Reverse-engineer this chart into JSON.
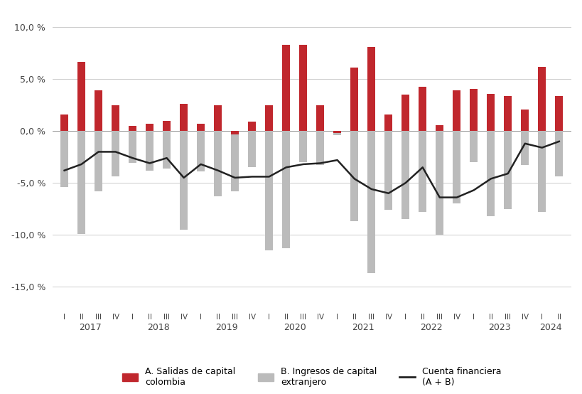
{
  "quarters": [
    "I",
    "II",
    "III",
    "IV",
    "I",
    "II",
    "III",
    "IV",
    "I",
    "II",
    "III",
    "IV",
    "I",
    "II",
    "III",
    "IV",
    "I",
    "II",
    "III",
    "IV",
    "I",
    "II",
    "III",
    "IV",
    "I",
    "II",
    "III",
    "IV",
    "I",
    "II"
  ],
  "years": [
    2017,
    2017,
    2017,
    2017,
    2018,
    2018,
    2018,
    2018,
    2019,
    2019,
    2019,
    2019,
    2020,
    2020,
    2020,
    2020,
    2021,
    2021,
    2021,
    2021,
    2022,
    2022,
    2022,
    2022,
    2023,
    2023,
    2023,
    2023,
    2024,
    2024
  ],
  "year_labels": [
    2017,
    2018,
    2019,
    2020,
    2021,
    2022,
    2023,
    2024
  ],
  "salidas": [
    1.6,
    6.7,
    3.9,
    2.5,
    0.5,
    0.7,
    1.0,
    2.6,
    0.7,
    2.5,
    -0.3,
    0.9,
    2.5,
    8.3,
    8.3,
    2.5,
    -0.2,
    6.1,
    8.1,
    1.6,
    3.5,
    4.3,
    0.6,
    3.9,
    4.1,
    3.6,
    3.4,
    2.1,
    6.2,
    3.4
  ],
  "ingresos": [
    -5.4,
    -9.9,
    -5.8,
    -4.4,
    -3.1,
    -3.8,
    -3.6,
    -9.5,
    -3.9,
    -6.3,
    -5.8,
    -3.5,
    -11.5,
    -11.3,
    -3.0,
    -3.3,
    -0.4,
    -8.7,
    -13.7,
    -7.6,
    -8.5,
    -7.8,
    -10.0,
    -7.0,
    -3.0,
    -8.2,
    -7.5,
    -3.3,
    -7.8,
    -4.4
  ],
  "cuenta": [
    -3.8,
    -3.2,
    -2.0,
    -2.0,
    -2.6,
    -3.1,
    -2.6,
    -4.5,
    -3.2,
    -3.8,
    -4.5,
    -4.4,
    -4.4,
    -3.5,
    -3.2,
    -3.1,
    -2.8,
    -4.6,
    -5.6,
    -6.0,
    -5.0,
    -3.5,
    -6.4,
    -6.4,
    -5.7,
    -4.6,
    -4.1,
    -1.2,
    -1.6,
    -1.0
  ],
  "bar_color_salidas": "#C0272D",
  "bar_color_ingresos": "#BBBBBB",
  "line_color": "#222222",
  "bg_color": "#FFFFFF",
  "grid_color": "#CCCCCC",
  "ylim": [
    -17.0,
    11.5
  ],
  "yticks": [
    -15.0,
    -10.0,
    -5.0,
    0.0,
    5.0,
    10.0
  ],
  "legend_salidas": "A. Salidas de capital\ncolombia",
  "legend_ingresos": "B. Ingresos de capital\nextranjero",
  "legend_cuenta": "Cuenta financiera\n(A + B)"
}
